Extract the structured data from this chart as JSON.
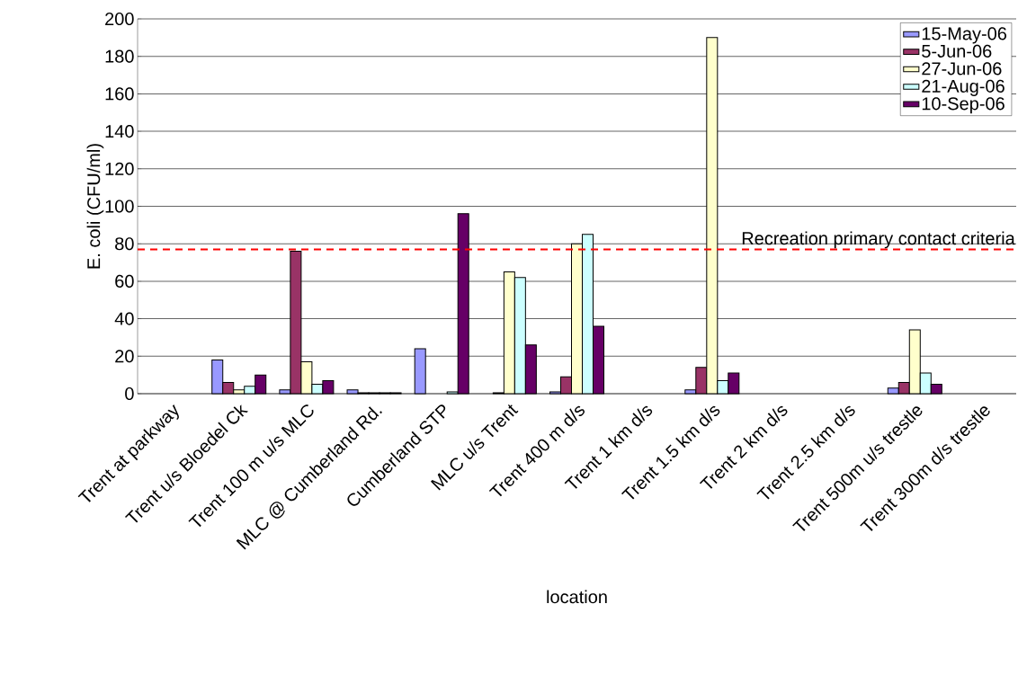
{
  "chart_data": {
    "type": "bar",
    "xlabel": "location",
    "ylabel": "E. coli (CFU/ml)",
    "categories": [
      "Trent at parkway",
      "Trent u/s Bloedel Ck",
      "Trent 100 m u/s MLC",
      "MLC @ Cumberland Rd.",
      "Cumberland STP",
      "MLC u/s Trent",
      "Trent 400 m d/s",
      "Trent 1 km d/s",
      "Trent 1.5 km d/s",
      "Trent 2 km d/s",
      "Trent 2.5 km d/s",
      "Trent 500m u/s trestle",
      "Trent 300m d/s trestle"
    ],
    "series": [
      {
        "name": "15-May-06",
        "color": "#9999ff",
        "values": [
          null,
          18,
          2,
          2,
          24,
          null,
          1,
          null,
          2,
          null,
          null,
          3,
          null
        ]
      },
      {
        "name": "5-Jun-06",
        "color": "#993366",
        "values": [
          null,
          6,
          76,
          0.5,
          null,
          0.5,
          9,
          null,
          14,
          null,
          null,
          6,
          null
        ]
      },
      {
        "name": "27-Jun-06",
        "color": "#ffffcc",
        "values": [
          null,
          2,
          17,
          0.5,
          null,
          65,
          80,
          null,
          190,
          null,
          null,
          34,
          null
        ]
      },
      {
        "name": "21-Aug-06",
        "color": "#ccffff",
        "values": [
          null,
          4,
          5,
          0.5,
          1,
          62,
          85,
          null,
          7,
          null,
          null,
          11,
          null
        ]
      },
      {
        "name": "10-Sep-06",
        "color": "#660066",
        "values": [
          null,
          10,
          7,
          0.5,
          96,
          26,
          36,
          null,
          11,
          null,
          null,
          5,
          null
        ]
      }
    ],
    "ylim": [
      0,
      200
    ],
    "yticks": [
      0,
      20,
      40,
      60,
      80,
      100,
      120,
      140,
      160,
      180,
      200
    ],
    "grid": "y",
    "legend": "top right",
    "ref_lines": [
      {
        "axis": "y",
        "value": 77,
        "label": "Recreation primary contact criteria",
        "color": "#ff0000",
        "line_style": "dashed"
      }
    ]
  }
}
